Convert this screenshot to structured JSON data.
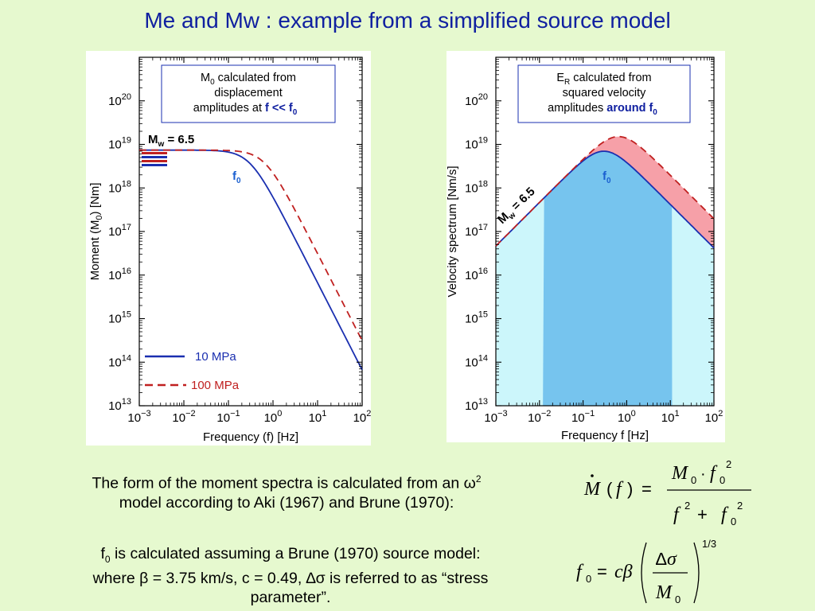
{
  "title": "Me and Mw : example from a simplified source model",
  "chart_data": [
    {
      "type": "line",
      "xlabel": "Frequency (f) [Hz]",
      "ylabel": "Moment (M0) [Nm]",
      "xscale": "log",
      "yscale": "log",
      "xlim": [
        0.001,
        100
      ],
      "ylim": [
        10000000000000.0,
        1e+21
      ],
      "x_ticks": [
        "10−3",
        "10−2",
        "10−1",
        "100",
        "101",
        "102"
      ],
      "y_ticks": [
        "1013",
        "1014",
        "1015",
        "1016",
        "1017",
        "1018",
        "1019",
        "1020"
      ],
      "series": [
        {
          "name": "10 MPa",
          "style": "solid",
          "color": "#1a2fb0",
          "plateau": 7.4e+18,
          "fc": 0.3
        },
        {
          "name": "100 MPa",
          "style": "dashed",
          "color": "#c02020",
          "plateau": 7.4e+18,
          "fc": 0.65
        }
      ],
      "annotation_box": {
        "line1": "M0 calculated from",
        "line2": "displacement",
        "line3": "amplitudes at ",
        "emph": "f << f0"
      },
      "mw_label": "Mw = 6.5",
      "f0_label": "f0",
      "legend": [
        "10 MPa",
        "100 MPa"
      ]
    },
    {
      "type": "area",
      "xlabel": "Frequency f [Hz]",
      "ylabel": "Velocity spectrum [Nm/s]",
      "xscale": "log",
      "yscale": "log",
      "xlim": [
        0.001,
        100
      ],
      "ylim": [
        10000000000000.0,
        1e+21
      ],
      "x_ticks": [
        "10−3",
        "10−2",
        "10−1",
        "100",
        "101",
        "102"
      ],
      "y_ticks": [
        "1013",
        "1014",
        "1015",
        "1016",
        "1017",
        "1018",
        "1019",
        "1020"
      ],
      "series": [
        {
          "name": "10 MPa",
          "style": "solid",
          "color": "#1a2fb0",
          "plateau": 7.4e+18,
          "fc": 0.3
        },
        {
          "name": "100 MPa",
          "style": "dashed",
          "color": "#c02020",
          "plateau": 7.4e+18,
          "fc": 0.65
        }
      ],
      "highlight_band": [
        0.012,
        11
      ],
      "annotation_box": {
        "line1": "ER calculated from",
        "line2": "squared velocity",
        "line3": "amplitudes ",
        "emph": "around f0"
      },
      "mw_label": "Mw = 6.5",
      "f0_label": "f0"
    }
  ],
  "text1": "The form of the moment spectra is calculated from an ω2 model according to Aki (1967) and Brune (1970):",
  "text2_a": "f0 is calculated assuming a Brune (1970) source model: where β = 3.75 km/s, c = 0.49, ∆σ is referred to as “stress parameter”."
}
